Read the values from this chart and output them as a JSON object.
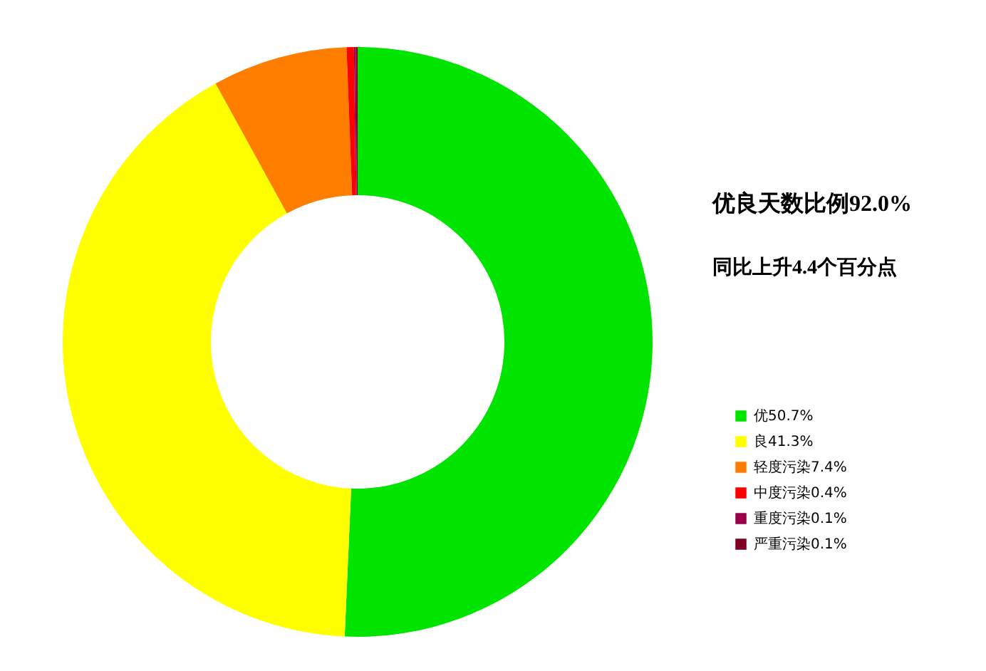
{
  "chart_data": {
    "type": "donut",
    "categories": [
      "优50.7%",
      "良41.3%",
      "轻度污染7.4%",
      "中度污染0.4%",
      "重度污染0.1%",
      "严重污染0.1%"
    ],
    "values": [
      50.7,
      41.3,
      7.4,
      0.4,
      0.1,
      0.1
    ],
    "colors": [
      "#00e400",
      "#ffff00",
      "#ff7e00",
      "#ff0000",
      "#99004c",
      "#7e0023"
    ],
    "annotations": [
      "优良天数比例92.0%",
      "同比上升4.4个百分点"
    ],
    "legend": "right"
  }
}
